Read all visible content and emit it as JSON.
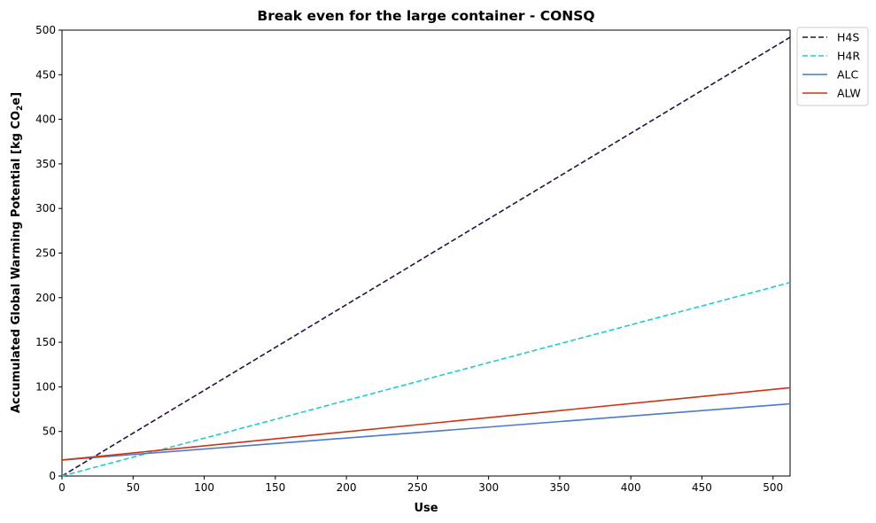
{
  "chart_data": {
    "type": "line",
    "title": "Break even for the large container - CONSQ",
    "xlabel": "Use",
    "ylabel": "Accumulated Global Warming Potential [kg CO",
    "ylabel_sub": "2",
    "ylabel_end": "e]",
    "xlim": [
      0,
      512
    ],
    "ylim": [
      0,
      500
    ],
    "xticks": [
      0,
      50,
      100,
      150,
      200,
      250,
      300,
      350,
      400,
      450,
      500
    ],
    "yticks": [
      0,
      50,
      100,
      150,
      200,
      250,
      300,
      350,
      400,
      450,
      500
    ],
    "grid": false,
    "legend_position": "outside top-right",
    "series": [
      {
        "name": "H4S",
        "color": "#2a0f44",
        "style": "dashed",
        "x": [
          0,
          512
        ],
        "y": [
          0,
          492
        ]
      },
      {
        "name": "H4R",
        "color": "#1ecdd6",
        "style": "dashed",
        "x": [
          0,
          512
        ],
        "y": [
          0,
          217
        ]
      },
      {
        "name": "ALC",
        "color": "#4a78d0",
        "style": "solid",
        "x": [
          0,
          512
        ],
        "y": [
          18,
          81
        ]
      },
      {
        "name": "ALW",
        "color": "#cc3311",
        "style": "solid",
        "x": [
          0,
          512
        ],
        "y": [
          18,
          99
        ]
      }
    ]
  }
}
